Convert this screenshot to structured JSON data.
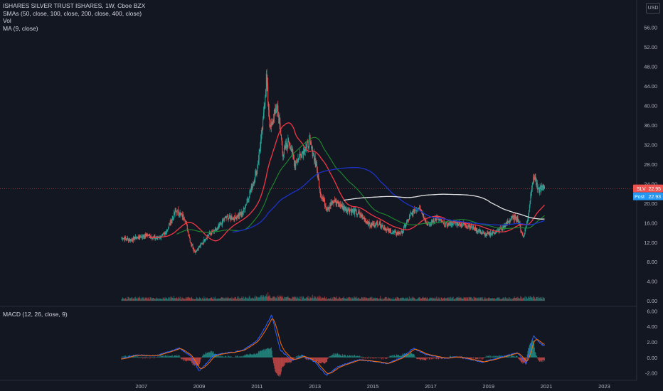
{
  "header": {
    "title": "ISHARES SILVER TRUST ISHARES, 1W, Cboe BZX",
    "indicators": [
      "SMAs (50, close, 100, close, 200, close, 400, close)",
      "Vol",
      "MA (9, close)"
    ],
    "currency_button": "USD"
  },
  "macd_label": "MACD (12, 26, close, 9)",
  "badges": {
    "symbol_label": "SLV",
    "symbol_value": "22.95",
    "post_label": "Post",
    "post_value": "22.93"
  },
  "colors": {
    "background": "#131722",
    "candle_up": "#26a69a",
    "candle_down": "#ef5350",
    "sma50": "#f23645",
    "sma100": "#1e8a2e",
    "sma200": "#1c32c8",
    "sma400": "#e0e0e0",
    "macd_line": "#2962ff",
    "signal_line": "#ff6d00",
    "price_badge": "#ef5350",
    "post_badge": "#2196f3"
  },
  "chart_data": [
    {
      "type": "line",
      "title": "ISHARES SILVER TRUST ISHARES, 1W, Cboe BZX",
      "x_axis_ticks": [
        "2007",
        "2009",
        "2011",
        "2013",
        "2015",
        "2017",
        "2019",
        "2021",
        "2023"
      ],
      "y_axis_ticks": [
        "56.00",
        "52.00",
        "48.00",
        "44.00",
        "40.00",
        "36.00",
        "32.00",
        "28.00",
        "24.00",
        "20.00",
        "16.00",
        "12.00",
        "8.00",
        "4.00",
        "0.00"
      ],
      "ylim": [
        -1,
        58
      ],
      "series": [
        {
          "name": "SLV",
          "x": [
            2006.3,
            2006.6,
            2006.9,
            2007.2,
            2007.5,
            2007.8,
            2008.0,
            2008.2,
            2008.5,
            2008.7,
            2008.85,
            2009.0,
            2009.3,
            2009.6,
            2009.9,
            2010.2,
            2010.5,
            2010.8,
            2011.0,
            2011.2,
            2011.32,
            2011.45,
            2011.6,
            2011.7,
            2011.9,
            2012.1,
            2012.3,
            2012.6,
            2012.8,
            2013.0,
            2013.2,
            2013.4,
            2013.7,
            2014.0,
            2014.3,
            2014.6,
            2014.9,
            2015.2,
            2015.5,
            2015.8,
            2016.0,
            2016.3,
            2016.6,
            2016.9,
            2017.2,
            2017.5,
            2017.8,
            2018.0,
            2018.3,
            2018.6,
            2018.9,
            2019.2,
            2019.5,
            2019.8,
            2020.0,
            2020.2,
            2020.35,
            2020.5,
            2020.6,
            2020.7,
            2020.8,
            2020.95
          ],
          "values": [
            13.0,
            12.5,
            13.0,
            13.5,
            12.8,
            13.5,
            16.0,
            18.5,
            17.0,
            12.0,
            10.0,
            11.0,
            13.5,
            14.5,
            17.0,
            17.0,
            18.0,
            23.0,
            27.0,
            36.0,
            46.0,
            35.0,
            38.0,
            40.0,
            30.0,
            33.0,
            28.0,
            31.0,
            32.5,
            29.0,
            22.0,
            19.0,
            20.5,
            19.0,
            18.5,
            17.5,
            15.5,
            16.0,
            14.5,
            13.8,
            14.0,
            17.5,
            19.5,
            15.5,
            17.0,
            15.5,
            16.0,
            15.8,
            15.5,
            14.5,
            13.5,
            14.0,
            15.0,
            17.0,
            17.0,
            13.0,
            16.5,
            24.0,
            25.5,
            22.5,
            23.0,
            23.5
          ]
        },
        {
          "name": "SMA 50",
          "values": []
        },
        {
          "name": "SMA 100",
          "values": []
        },
        {
          "name": "SMA 200",
          "values": []
        },
        {
          "name": "SMA 400",
          "values": []
        }
      ]
    },
    {
      "type": "line",
      "title": "MACD (12, 26, close, 9)",
      "y_axis_ticks": [
        "6.00",
        "4.00",
        "2.00",
        "0.00",
        "-2.00"
      ],
      "ylim": [
        -2.5,
        6.5
      ],
      "series": [
        {
          "name": "MACD",
          "x": [
            2006.3,
            2006.8,
            2007.5,
            2008.0,
            2008.3,
            2008.7,
            2009.0,
            2009.5,
            2010.0,
            2010.5,
            2011.0,
            2011.3,
            2011.5,
            2011.8,
            2012.2,
            2012.6,
            2013.0,
            2013.4,
            2013.8,
            2014.5,
            2015.0,
            2015.5,
            2016.0,
            2016.4,
            2016.8,
            2017.5,
            2018.0,
            2018.8,
            2019.5,
            2020.0,
            2020.3,
            2020.55,
            2020.8,
            2021.0
          ],
          "values": [
            -0.2,
            0.3,
            0.2,
            0.8,
            1.2,
            0.2,
            -1.8,
            0.3,
            0.6,
            0.9,
            2.2,
            4.0,
            5.5,
            1.0,
            -0.4,
            0.2,
            -0.6,
            -2.3,
            -1.2,
            -0.3,
            -0.5,
            -0.8,
            0.0,
            1.2,
            0.4,
            -0.1,
            0.1,
            -0.6,
            0.1,
            0.6,
            -0.8,
            2.8,
            1.8,
            1.3
          ]
        }
      ]
    }
  ]
}
